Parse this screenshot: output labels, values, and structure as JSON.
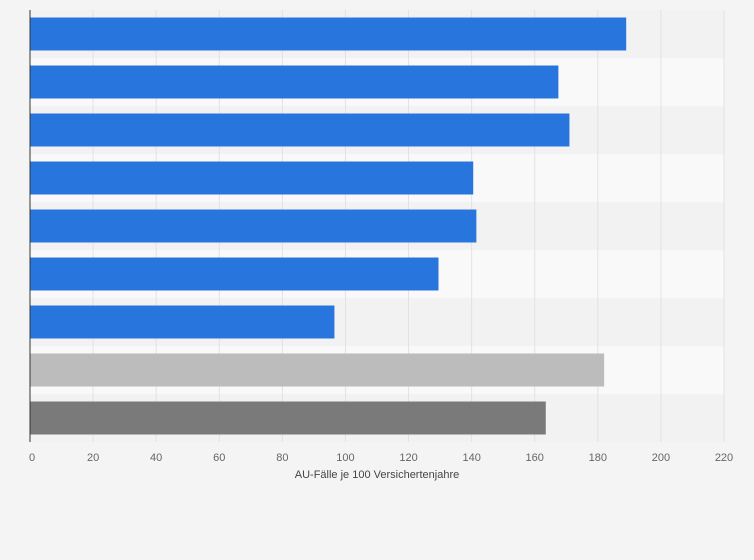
{
  "chart_data": {
    "type": "bar",
    "orientation": "horizontal",
    "title": "",
    "xlabel": "AU-Fälle je 100 Versichertenjahre",
    "ylabel": "",
    "xlim": [
      0,
      220
    ],
    "xticks": [
      0,
      20,
      40,
      60,
      80,
      100,
      120,
      140,
      160,
      180,
      200,
      220
    ],
    "categories": [
      "",
      "",
      "",
      "",
      "",
      "",
      "",
      "",
      ""
    ],
    "values": [
      189,
      167.5,
      171,
      140.5,
      141.5,
      129.5,
      96.5,
      182,
      163.5
    ],
    "bar_colors": [
      "#2876dd",
      "#2876dd",
      "#2876dd",
      "#2876dd",
      "#2876dd",
      "#2876dd",
      "#2876dd",
      "#bcbcbc",
      "#7a7a7a"
    ],
    "grid": true,
    "legend": "none",
    "colors": {
      "background": "#f4f4f4",
      "band_light": "#f9f9f9",
      "band_dark": "#f2f2f2",
      "grid": "#e2e2e2",
      "axis": "#333333"
    }
  }
}
